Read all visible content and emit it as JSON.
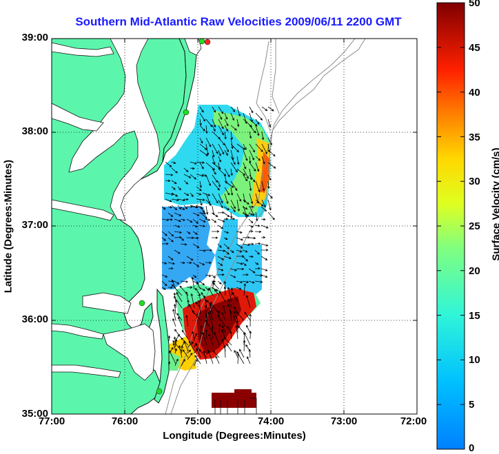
{
  "title": "Southern Mid-Atlantic Raw Velocities 2009/06/11 2200 GMT",
  "x_axis": {
    "label": "Longitude (Degrees:Minutes)",
    "ticks": [
      "77:00",
      "76:00",
      "75:00",
      "74:00",
      "73:00",
      "72:00"
    ]
  },
  "y_axis": {
    "label": "Latitude (Degrees:Minutes)",
    "ticks": [
      "39:00",
      "38:00",
      "37:00",
      "36:00",
      "35:00"
    ]
  },
  "colorbar": {
    "label": "Surface Velocity (cm/s)",
    "ticks": [
      "50",
      "45",
      "40",
      "35",
      "30",
      "25",
      "20",
      "15",
      "10",
      "5",
      "0"
    ],
    "min": 0,
    "max": 50,
    "colormap": "jet"
  },
  "map": {
    "lon_range": [
      -77,
      -72
    ],
    "lat_range": [
      35,
      39
    ],
    "land_color": "#5cf5ac",
    "coast_color": "#111111",
    "bathymetry_color": "#8c8c8c",
    "grid": "dotted",
    "stations_color": "#22dd22",
    "highlight_station_color": "#ff2222"
  }
}
